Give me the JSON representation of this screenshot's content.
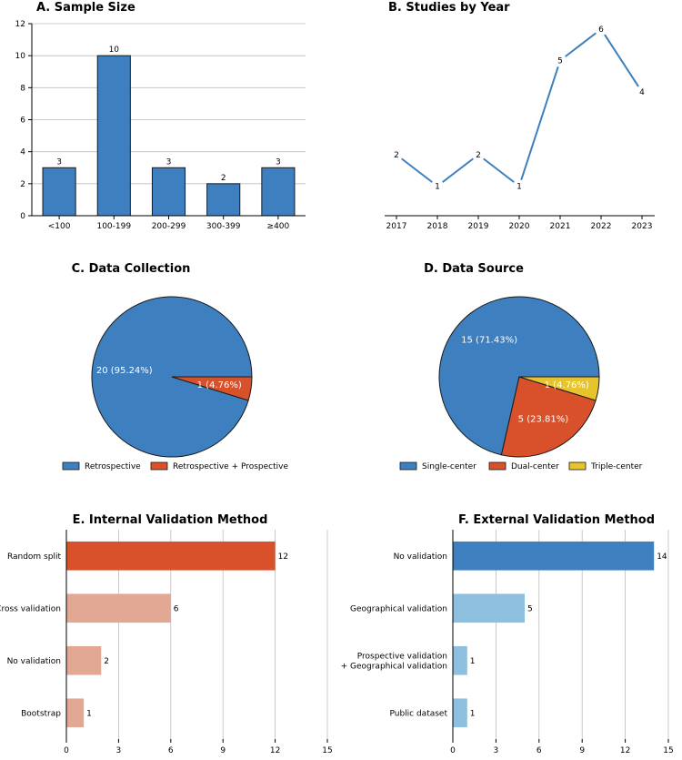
{
  "colors": {
    "blue": "#3d7fbf",
    "red": "#d9512b",
    "salmon": "#e3a894",
    "lightblue": "#8dbfde",
    "yellow": "#e8c42c"
  },
  "chart_data": [
    {
      "id": "A",
      "type": "bar",
      "title": "A. Sample Size",
      "categories": [
        "<100",
        "100-199",
        "200-299",
        "300-399",
        "≥400"
      ],
      "values": [
        3,
        10,
        3,
        2,
        3
      ],
      "ylim": [
        0,
        12
      ],
      "yticks": [
        0,
        2,
        4,
        6,
        8,
        10,
        12
      ],
      "grid": "horizontal",
      "color": "#3d7fbf"
    },
    {
      "id": "B",
      "type": "line",
      "title": "B. Studies by Year",
      "x": [
        "2017",
        "2018",
        "2019",
        "2020",
        "2021",
        "2022",
        "2023"
      ],
      "values": [
        2,
        1,
        2,
        1,
        5,
        6,
        4
      ],
      "color": "#3d7fbf"
    },
    {
      "id": "C",
      "type": "pie",
      "title": "C. Data Collection",
      "labels": [
        "Retrospective",
        "Retrospective + Prospective"
      ],
      "values": [
        20,
        1
      ],
      "slice_labels": [
        "20 (95.24%)",
        "1 (4.76%)"
      ],
      "colors": [
        "#3d7fbf",
        "#d9512b"
      ],
      "legend": "bottom"
    },
    {
      "id": "D",
      "type": "pie",
      "title": "D. Data Source",
      "labels": [
        "Single-center",
        "Dual-center",
        "Triple-center"
      ],
      "values": [
        15,
        5,
        1
      ],
      "slice_labels": [
        "15 (71.43%)",
        "5 (23.81%)",
        "1 (4.76%)"
      ],
      "colors": [
        "#3d7fbf",
        "#d9512b",
        "#e8c42c"
      ],
      "legend": "bottom"
    },
    {
      "id": "E",
      "type": "bar",
      "orientation": "horizontal",
      "title": "E. Internal Validation Method",
      "categories": [
        "Random split",
        "Cross validation",
        "No validation",
        "Bootstrap"
      ],
      "values": [
        12,
        6,
        2,
        1
      ],
      "xlim": [
        0,
        15
      ],
      "xticks": [
        0,
        3,
        6,
        9,
        12,
        15
      ],
      "grid": "vertical",
      "colors": [
        "#d9512b",
        "#e3a894",
        "#e3a894",
        "#e3a894"
      ]
    },
    {
      "id": "F",
      "type": "bar",
      "orientation": "horizontal",
      "title": "F. External Validation Method",
      "categories": [
        "No validation",
        "Geographical validation",
        "Prospective validation\n+ Geographical validation",
        "Public dataset"
      ],
      "values": [
        14,
        5,
        1,
        1
      ],
      "xlim": [
        0,
        15
      ],
      "xticks": [
        0,
        3,
        6,
        9,
        12,
        15
      ],
      "grid": "vertical",
      "colors": [
        "#3d7fbf",
        "#8dbfde",
        "#8dbfde",
        "#8dbfde"
      ]
    }
  ]
}
